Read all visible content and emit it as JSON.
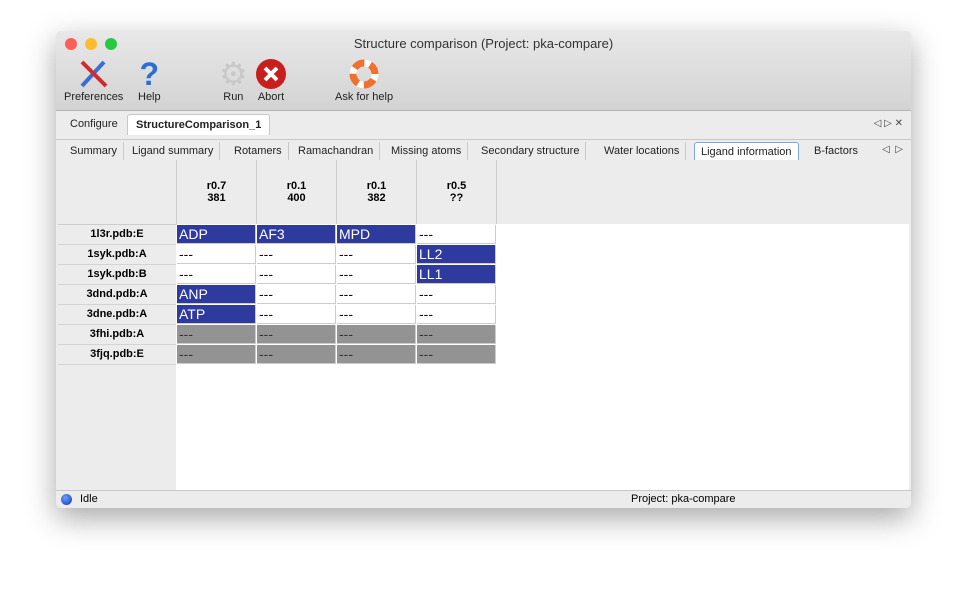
{
  "window": {
    "title": "Structure comparison (Project: pka-compare)"
  },
  "toolbar": [
    {
      "label": "Preferences",
      "icon": "tools-icon"
    },
    {
      "label": "Help",
      "icon": "help-icon"
    },
    {
      "label": "Run",
      "icon": "gear-icon"
    },
    {
      "label": "Abort",
      "icon": "abort-icon"
    },
    {
      "label": "Ask for help",
      "icon": "lifebuoy-icon"
    }
  ],
  "top_tabs": [
    {
      "label": "Configure"
    },
    {
      "label": "StructureComparison_1",
      "active": true
    }
  ],
  "sub_tabs": [
    {
      "label": "Summary"
    },
    {
      "label": "Ligand summary"
    },
    {
      "label": "Rotamers"
    },
    {
      "label": "Ramachandran"
    },
    {
      "label": "Missing atoms"
    },
    {
      "label": "Secondary structure"
    },
    {
      "label": "Water locations"
    },
    {
      "label": "Ligand information",
      "active": true
    },
    {
      "label": "B-factors"
    }
  ],
  "table": {
    "columns": [
      {
        "l1": "r0.7",
        "l2": "381"
      },
      {
        "l1": "r0.1",
        "l2": "400"
      },
      {
        "l1": "r0.1",
        "l2": "382"
      },
      {
        "l1": "r0.5",
        "l2": "??"
      }
    ],
    "rows": [
      {
        "label": "1l3r.pdb:E",
        "cells": [
          [
            "ADP",
            "hit"
          ],
          [
            "AF3",
            "hit"
          ],
          [
            "MPD",
            "hit"
          ],
          [
            "---",
            "none"
          ]
        ]
      },
      {
        "label": "1syk.pdb:A",
        "cells": [
          [
            "---",
            "none"
          ],
          [
            "---",
            "none"
          ],
          [
            "---",
            "none"
          ],
          [
            "LL2",
            "hit"
          ]
        ]
      },
      {
        "label": "1syk.pdb:B",
        "cells": [
          [
            "---",
            "none"
          ],
          [
            "---",
            "none"
          ],
          [
            "---",
            "none"
          ],
          [
            "LL1",
            "hit"
          ]
        ]
      },
      {
        "label": "3dnd.pdb:A",
        "cells": [
          [
            "ANP",
            "hit"
          ],
          [
            "---",
            "none"
          ],
          [
            "---",
            "none"
          ],
          [
            "---",
            "none"
          ]
        ]
      },
      {
        "label": "3dne.pdb:A",
        "cells": [
          [
            "ATP",
            "hit"
          ],
          [
            "---",
            "none"
          ],
          [
            "---",
            "none"
          ],
          [
            "---",
            "none"
          ]
        ]
      },
      {
        "label": "3fhi.pdb:A",
        "cells": [
          [
            "---",
            "miss"
          ],
          [
            "---",
            "miss"
          ],
          [
            "---",
            "miss"
          ],
          [
            "---",
            "miss"
          ]
        ]
      },
      {
        "label": "3fjq.pdb:E",
        "cells": [
          [
            "---",
            "miss"
          ],
          [
            "---",
            "miss"
          ],
          [
            "---",
            "miss"
          ],
          [
            "---",
            "miss"
          ]
        ]
      }
    ],
    "colors": {
      "hit": "#2f3a9e",
      "miss": "#939393"
    }
  },
  "status": {
    "state": "Idle",
    "project": "Project: pka-compare"
  }
}
